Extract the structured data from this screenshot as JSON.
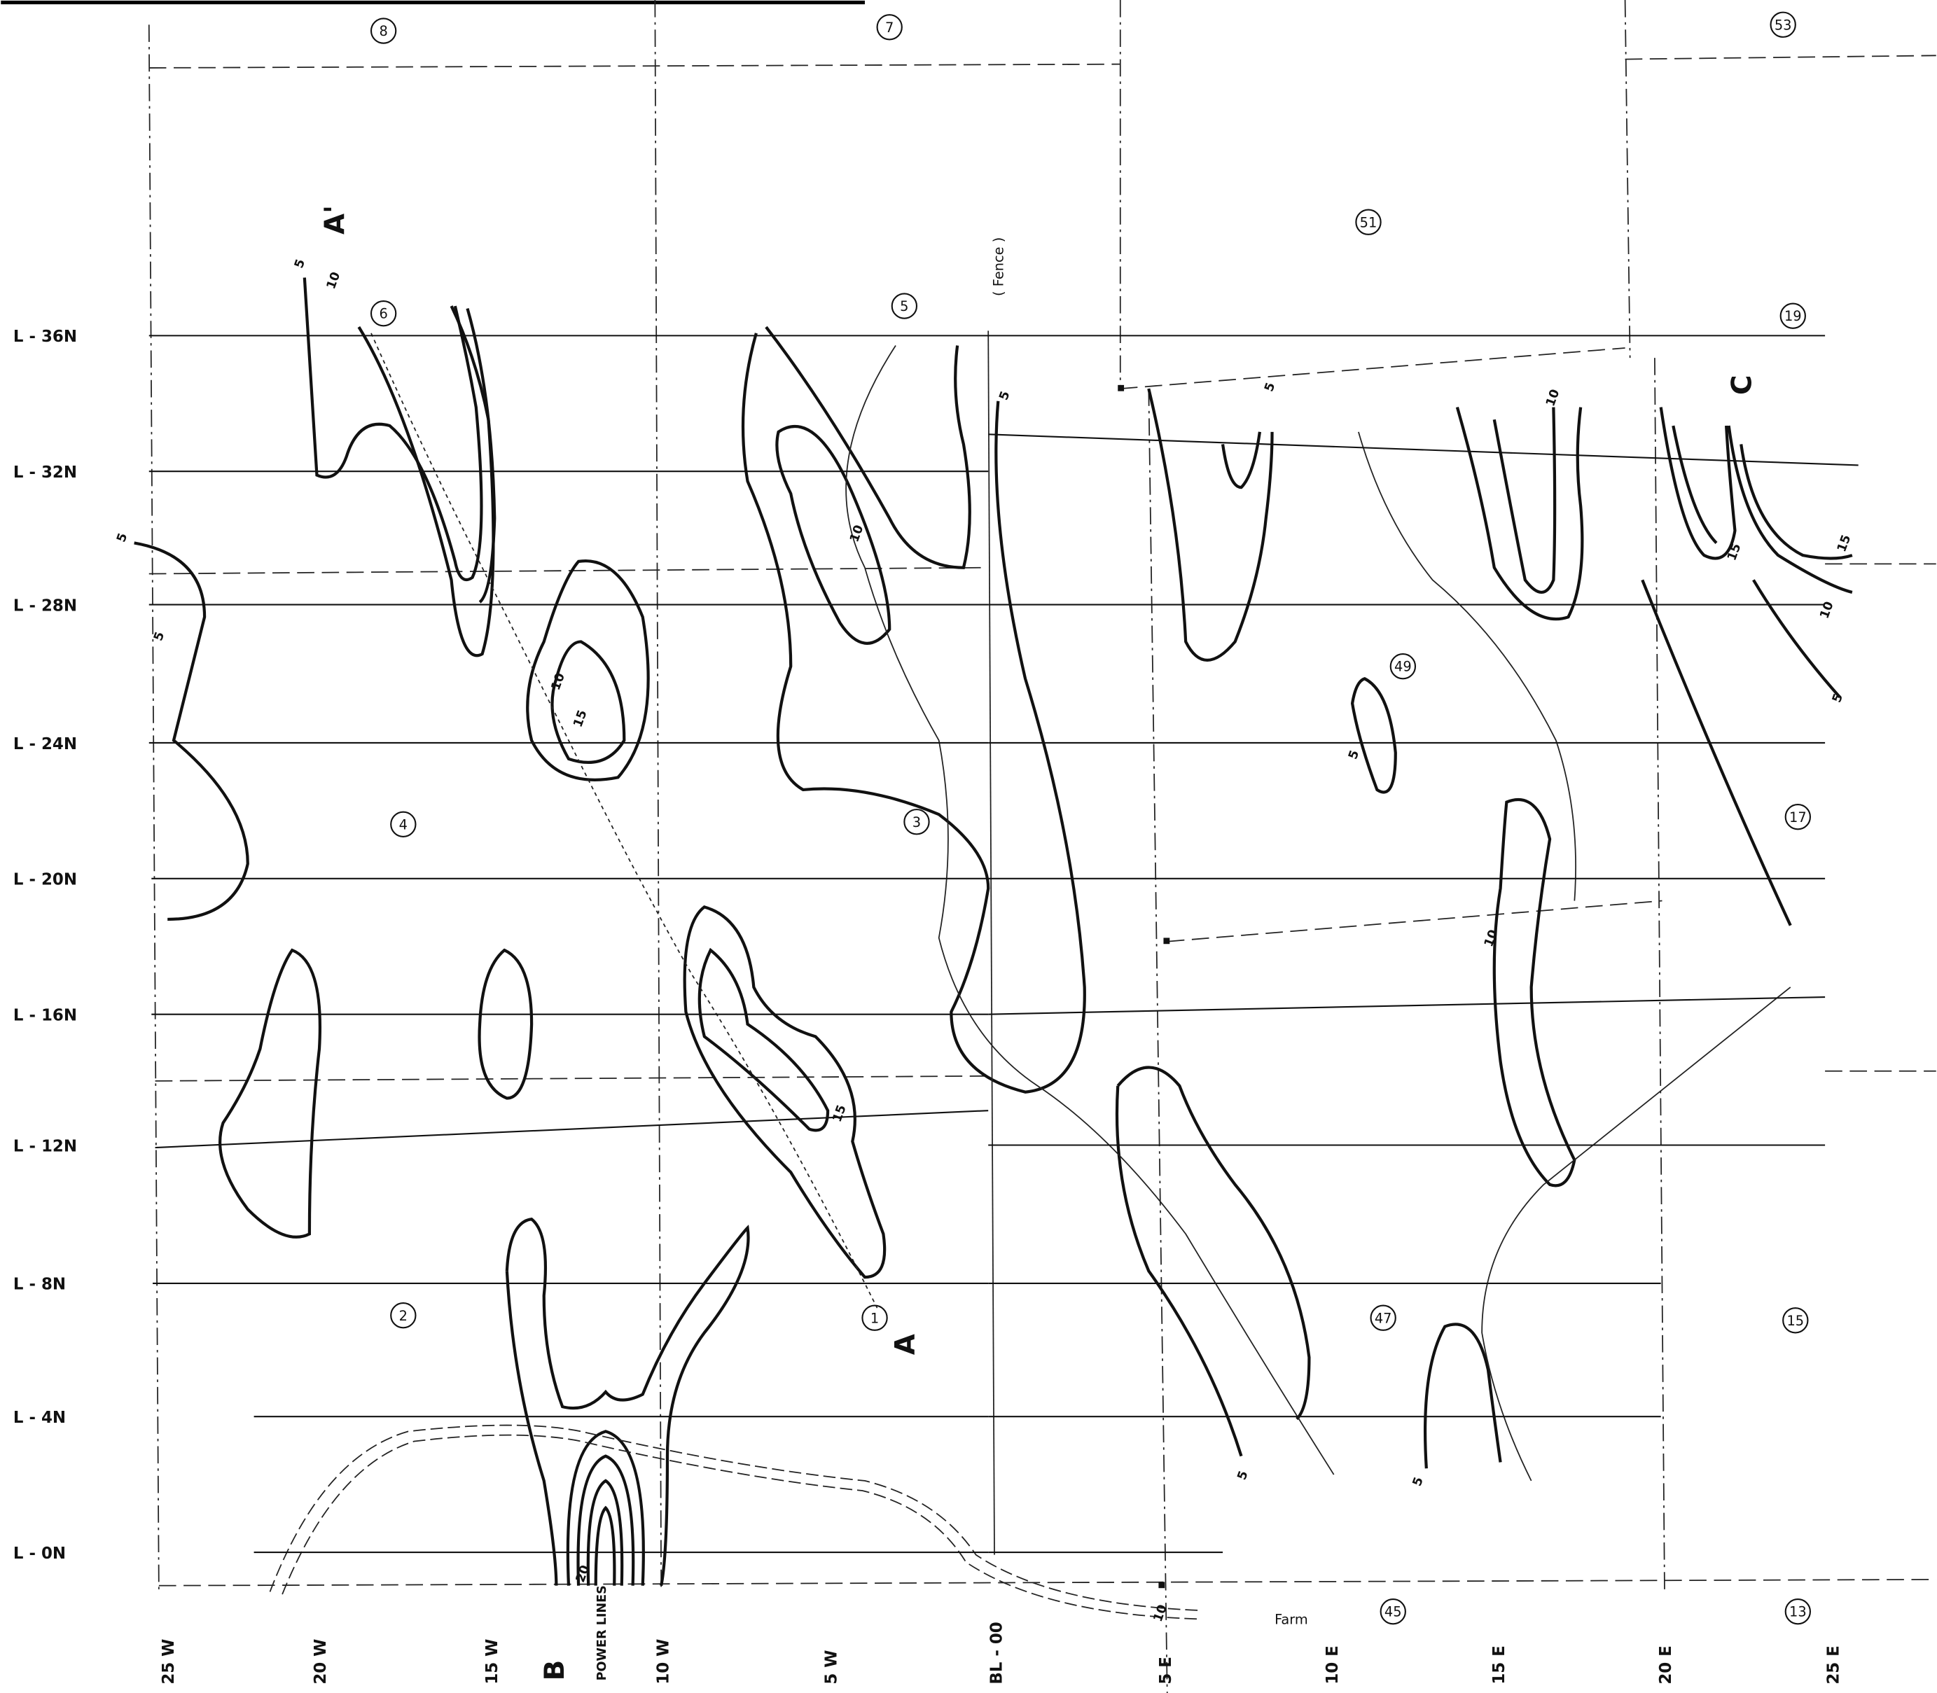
{
  "map": {
    "survey_lines": [
      "L - 36N",
      "L - 32N",
      "L - 28N",
      "L - 24N",
      "L - 20N",
      "L - 16N",
      "L - 12N",
      "L - 8N",
      "L - 4N",
      "L - 0N"
    ],
    "stations": [
      "25 W",
      "20 W",
      "15 W",
      "10 W",
      "5 W",
      "BL - 00",
      "5 E",
      "10 E",
      "15 E",
      "20 E",
      "25 E"
    ],
    "claims": [
      "8",
      "7",
      "53",
      "51",
      "19",
      "6",
      "5",
      "49",
      "4",
      "3",
      "17",
      "2",
      "1",
      "47",
      "15",
      "45",
      "13"
    ],
    "section_markers": [
      "A",
      "A'",
      "B",
      "C"
    ],
    "annotations": {
      "fence": "( Fence )",
      "power_lines": "POWER LINES",
      "farm": "Farm"
    },
    "contour_labels": [
      "5",
      "10",
      "5",
      "10",
      "15",
      "20",
      "5",
      "10",
      "15",
      "5",
      "10",
      "5",
      "5",
      "10",
      "15",
      "10",
      "15",
      "10",
      "5",
      "5",
      "5"
    ]
  }
}
